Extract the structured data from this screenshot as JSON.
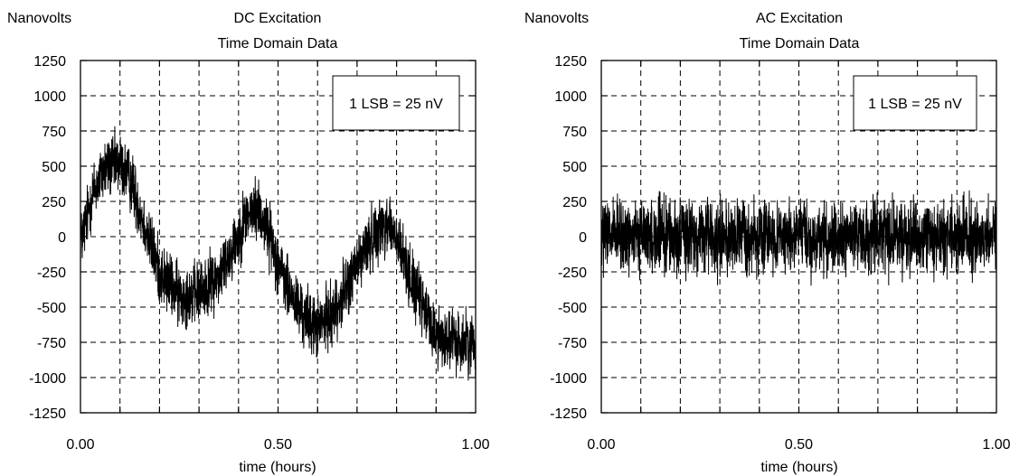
{
  "chart_data": [
    {
      "type": "line",
      "title": "DC Excitation",
      "subtitle": "Time Domain Data",
      "ylabel": "Nanovolts",
      "xlabel": "time (hours)",
      "annotation": "1 LSB = 25 nV",
      "xlim": [
        0,
        1
      ],
      "ylim": [
        -1250,
        1250
      ],
      "x_ticks": [
        0,
        0.5,
        1
      ],
      "x_tick_labels": [
        "0.00",
        "0.50",
        "1.00"
      ],
      "y_ticks": [
        1250,
        1000,
        750,
        500,
        250,
        0,
        -250,
        -500,
        -750,
        -1000,
        -1250
      ],
      "y_tick_labels": [
        "1250",
        "1000",
        "750",
        "500",
        "250",
        "0",
        "-250",
        "-500",
        "-750",
        "-1000",
        "-1250"
      ],
      "grid": true,
      "series": [
        {
          "x": [
            0,
            0.03,
            0.06,
            0.1,
            0.13,
            0.16,
            0.2,
            0.25,
            0.3,
            0.35,
            0.39,
            0.42,
            0.45,
            0.48,
            0.52,
            0.56,
            0.6,
            0.65,
            0.7,
            0.75,
            0.78,
            0.81,
            0.85,
            0.9,
            0.95,
            1.0
          ],
          "y": [
            -50,
            300,
            480,
            520,
            380,
            100,
            -250,
            -420,
            -400,
            -280,
            -50,
            150,
            200,
            0,
            -350,
            -550,
            -650,
            -500,
            -200,
            50,
            100,
            -100,
            -400,
            -700,
            -750,
            -750
          ],
          "noise_amplitude": 320
        }
      ]
    },
    {
      "type": "line",
      "title": "AC Excitation",
      "subtitle": "Time Domain Data",
      "ylabel": "Nanovolts",
      "xlabel": "time (hours)",
      "annotation": "1 LSB = 25 nV",
      "xlim": [
        0,
        1
      ],
      "ylim": [
        -1250,
        1250
      ],
      "x_ticks": [
        0,
        0.5,
        1
      ],
      "x_tick_labels": [
        "0.00",
        "0.50",
        "1.00"
      ],
      "y_ticks": [
        1250,
        1000,
        750,
        500,
        250,
        0,
        -250,
        -500,
        -750,
        -1000,
        -1250
      ],
      "y_tick_labels": [
        "1250",
        "1000",
        "750",
        "500",
        "250",
        "0",
        "-250",
        "-500",
        "-750",
        "-1000",
        "-1250"
      ],
      "grid": true,
      "series": [
        {
          "x": [
            0,
            0.25,
            0.5,
            0.75,
            1.0
          ],
          "y": [
            0,
            0,
            0,
            0,
            0
          ],
          "noise_amplitude": 380
        }
      ]
    }
  ]
}
